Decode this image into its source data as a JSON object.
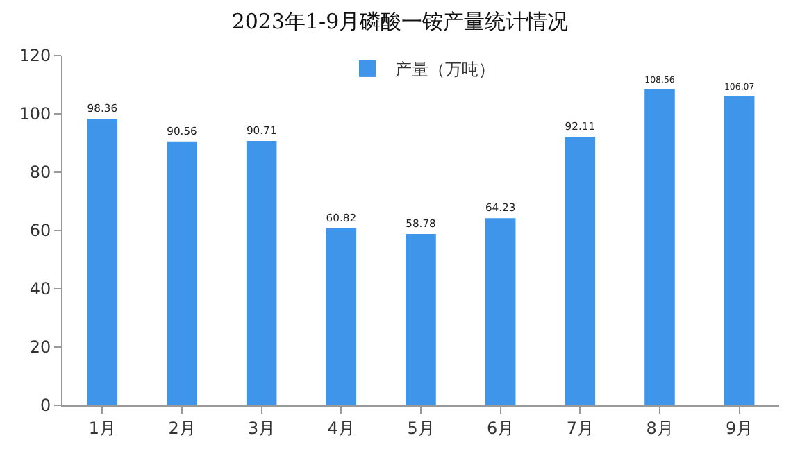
{
  "chart_data": {
    "type": "bar",
    "title": "2023年1-9月磷酸一铵产量统计情况",
    "categories": [
      "1月",
      "2月",
      "3月",
      "4月",
      "5月",
      "6月",
      "7月",
      "8月",
      "9月"
    ],
    "series": [
      {
        "name": "产量（万吨）",
        "color": "#3e95ea",
        "values": [
          98.36,
          90.56,
          90.71,
          60.82,
          58.78,
          64.23,
          92.11,
          108.56,
          106.07
        ]
      }
    ],
    "ylim": [
      0,
      120
    ],
    "yticks": [
      0,
      20,
      40,
      60,
      80,
      100,
      120
    ],
    "grid": false,
    "legend": "top",
    "data_labels": true
  }
}
